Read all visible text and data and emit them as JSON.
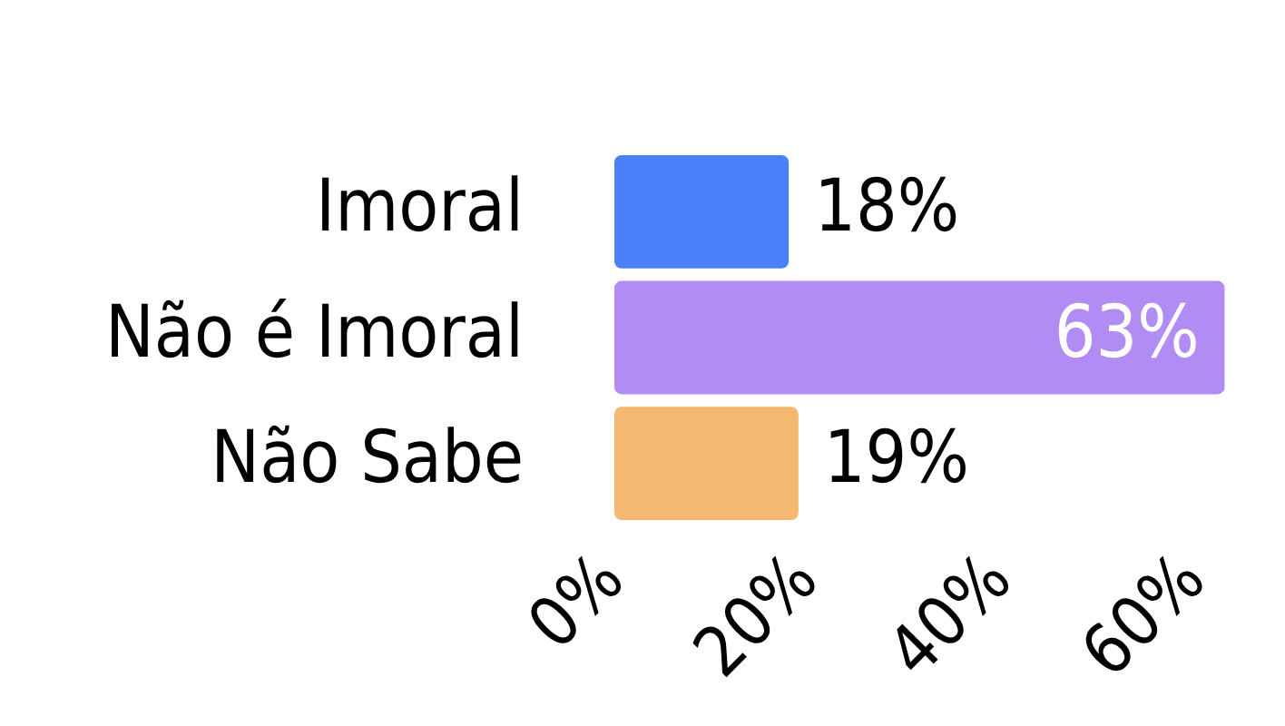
{
  "chart_data": {
    "type": "bar",
    "orientation": "horizontal",
    "categories": [
      "Imoral",
      "Não é Imoral",
      "Não Sabe"
    ],
    "values": [
      18,
      63,
      19
    ],
    "colors": [
      "#4a80f8",
      "#b08cf4",
      "#f4b870"
    ],
    "value_labels": [
      "18%",
      "63%",
      "19%"
    ],
    "xlim": [
      0,
      63
    ],
    "xticks": [
      {
        "value": 0,
        "label": "0%"
      },
      {
        "value": 20,
        "label": "20%"
      },
      {
        "value": 40,
        "label": "40%"
      },
      {
        "value": 60,
        "label": "60%"
      }
    ],
    "grid": false,
    "legend": false
  }
}
